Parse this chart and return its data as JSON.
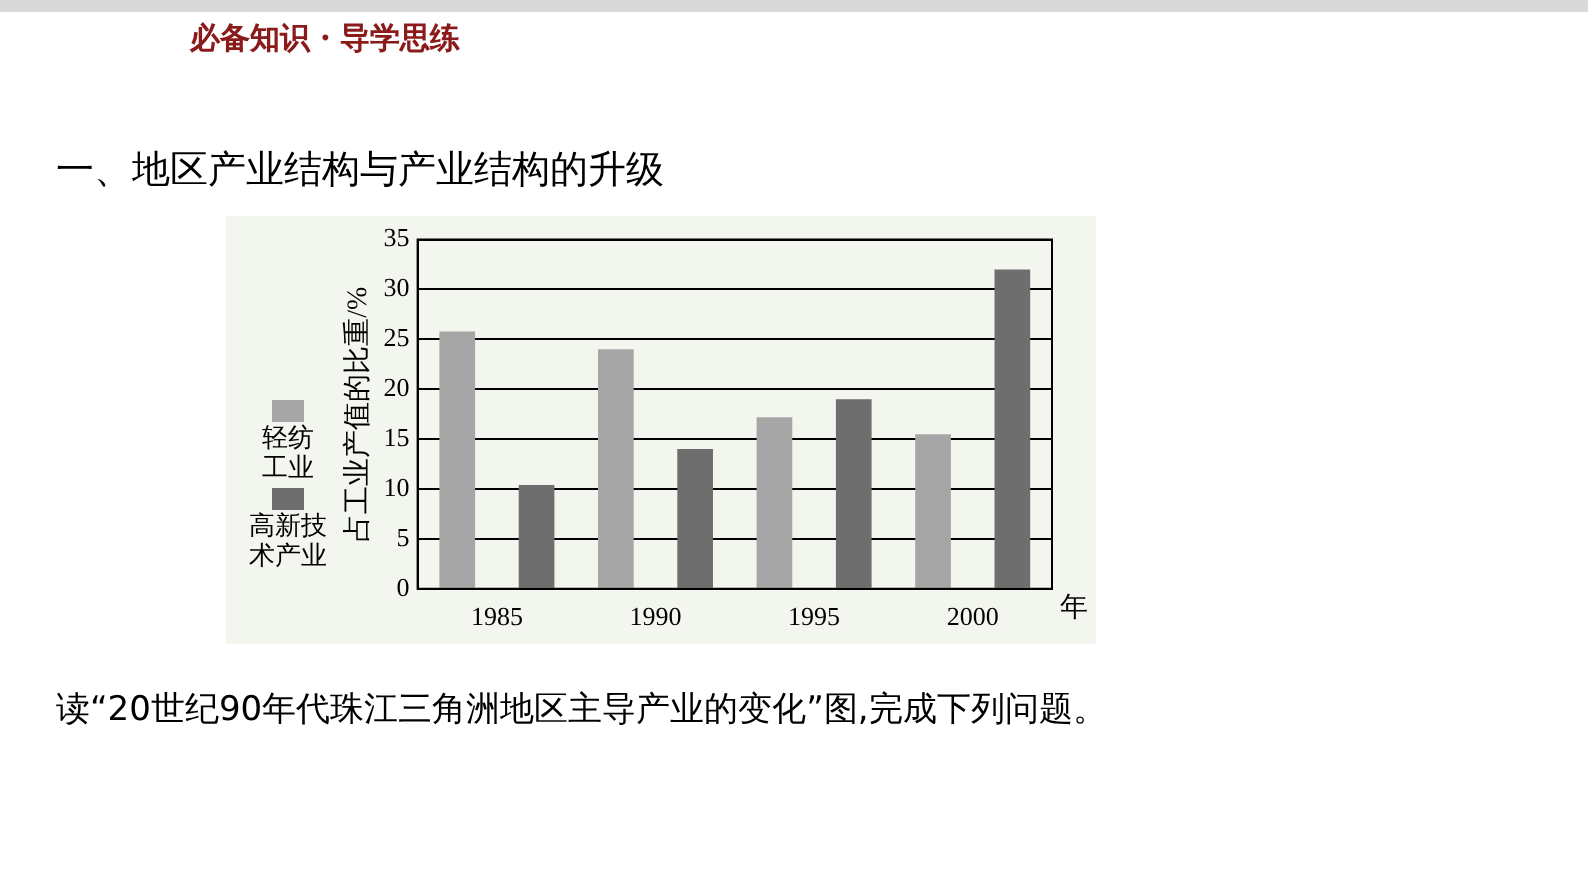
{
  "chart_data": {
    "type": "bar",
    "subtitle": "必备知识・导学思练",
    "title": "一、地区产业结构与产业结构的升级",
    "categories": [
      "1985",
      "1990",
      "1995",
      "2000"
    ],
    "series": [
      {
        "name": "轻纺工业",
        "color": "#a6a6a6",
        "values": [
          25.8,
          24,
          17.2,
          15.5
        ]
      },
      {
        "name": "高新技术产业",
        "color": "#6e6e6e",
        "values": [
          10.4,
          14,
          19,
          32
        ]
      }
    ],
    "xlabel": "年",
    "ylabel": "占工业产值的比重/%",
    "ylim": [
      0,
      35
    ],
    "yticks": [
      0,
      5,
      10,
      15,
      20,
      25,
      30,
      35
    ],
    "grid": "y",
    "legend": "left",
    "annotations": [
      "读“20世纪90年代珠江三角洲地区主导产业的变化”图,完成下列问题。"
    ]
  }
}
